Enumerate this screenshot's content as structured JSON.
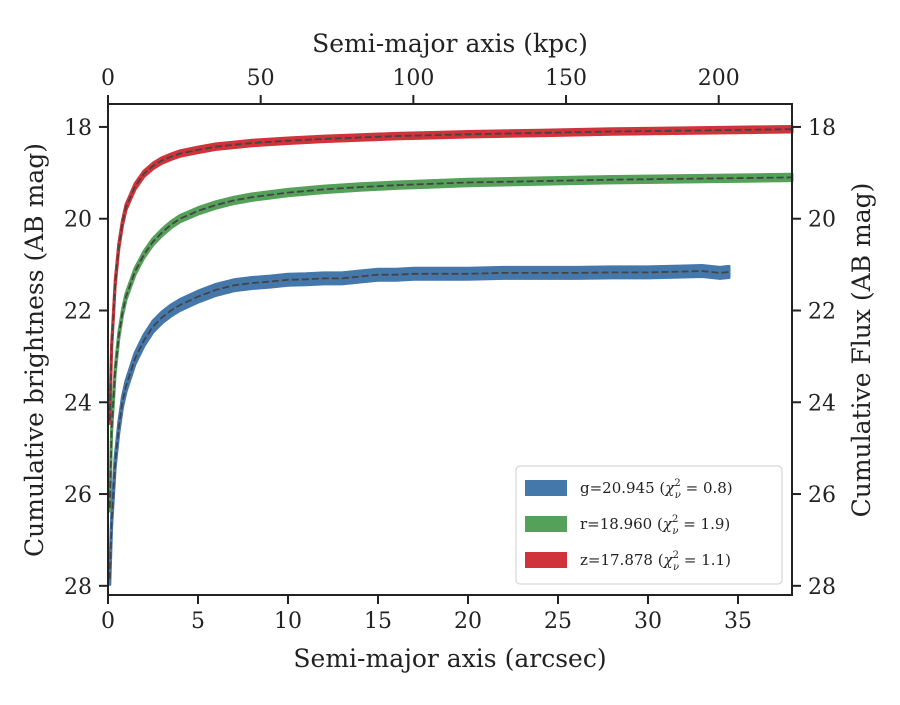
{
  "chart_data": {
    "type": "line",
    "xlabel": "Semi-major axis (arcsec)",
    "x2label": "Semi-major axis (kpc)",
    "ylabel": "Cumulative brightness (AB mag)",
    "y2label": "Cumulative Flux (AB mag)",
    "xlim": [
      0,
      38
    ],
    "x2lim": [
      0,
      224
    ],
    "ylim": [
      28.2,
      17.5
    ],
    "y_inverted": true,
    "xticks": [
      "0",
      "5",
      "10",
      "15",
      "20",
      "25",
      "30",
      "35"
    ],
    "x2ticks": [
      "0",
      "50",
      "100",
      "150",
      "200"
    ],
    "yticks": [
      "18",
      "20",
      "22",
      "24",
      "26",
      "28"
    ],
    "grid": false,
    "legend_position": "lower-right",
    "series": [
      {
        "name": "g=20.945 (χ²ν = 0.8)",
        "legend_main": "g=20.945 (",
        "legend_sub": "ν",
        "legend_sup": "2",
        "legend_eq": " = 0.8)",
        "color": "#4477aa",
        "band_width": 0.12,
        "x": [
          0.1,
          0.2,
          0.4,
          0.6,
          0.8,
          1,
          1.5,
          2,
          2.5,
          3,
          3.5,
          4,
          5,
          6,
          7,
          8,
          9,
          10,
          11,
          12,
          13,
          14,
          15,
          16,
          17,
          18,
          19,
          20,
          22,
          24,
          26,
          28,
          30,
          32,
          33,
          34,
          34.5
        ],
        "y": [
          27.85,
          26.6,
          25.3,
          24.55,
          24.0,
          23.65,
          23.05,
          22.65,
          22.35,
          22.15,
          22.0,
          21.88,
          21.7,
          21.55,
          21.45,
          21.4,
          21.37,
          21.33,
          21.32,
          21.3,
          21.3,
          21.26,
          21.22,
          21.22,
          21.2,
          21.2,
          21.2,
          21.2,
          21.18,
          21.18,
          21.18,
          21.17,
          21.17,
          21.15,
          21.14,
          21.18,
          21.16
        ]
      },
      {
        "name": "r=18.960 (χ²ν = 1.9)",
        "legend_main": "r=18.960 (",
        "legend_sub": "ν",
        "legend_sup": "2",
        "legend_eq": " = 1.9)",
        "color": "#55a15a",
        "band_width": 0.07,
        "x": [
          0.1,
          0.2,
          0.4,
          0.6,
          0.8,
          1,
          1.5,
          2,
          2.5,
          3,
          3.5,
          4,
          5,
          6,
          7,
          8,
          10,
          12,
          14,
          16,
          18,
          20,
          24,
          28,
          32,
          36,
          38
        ],
        "y": [
          26.3,
          24.6,
          23.3,
          22.55,
          22.05,
          21.7,
          21.15,
          20.78,
          20.5,
          20.3,
          20.13,
          20.0,
          19.83,
          19.7,
          19.6,
          19.53,
          19.43,
          19.36,
          19.31,
          19.27,
          19.24,
          19.21,
          19.18,
          19.15,
          19.13,
          19.11,
          19.1
        ]
      },
      {
        "name": "z=17.878 (χ²ν = 1.1)",
        "legend_main": "z=17.878 (",
        "legend_sub": "ν",
        "legend_sup": "2",
        "legend_eq": " = 1.1)",
        "color": "#d0333a",
        "band_width": 0.06,
        "x": [
          0.1,
          0.2,
          0.4,
          0.6,
          0.8,
          1,
          1.5,
          2,
          2.5,
          3,
          3.5,
          4,
          5,
          6,
          7,
          8,
          10,
          12,
          14,
          16,
          18,
          20,
          24,
          28,
          32,
          36,
          38
        ],
        "y": [
          24.4,
          22.8,
          21.4,
          20.6,
          20.1,
          19.75,
          19.3,
          19.02,
          18.85,
          18.73,
          18.65,
          18.58,
          18.5,
          18.43,
          18.39,
          18.35,
          18.3,
          18.26,
          18.23,
          18.2,
          18.18,
          18.16,
          18.13,
          18.1,
          18.08,
          18.06,
          18.05
        ]
      }
    ],
    "model_line_color": "#444444"
  }
}
